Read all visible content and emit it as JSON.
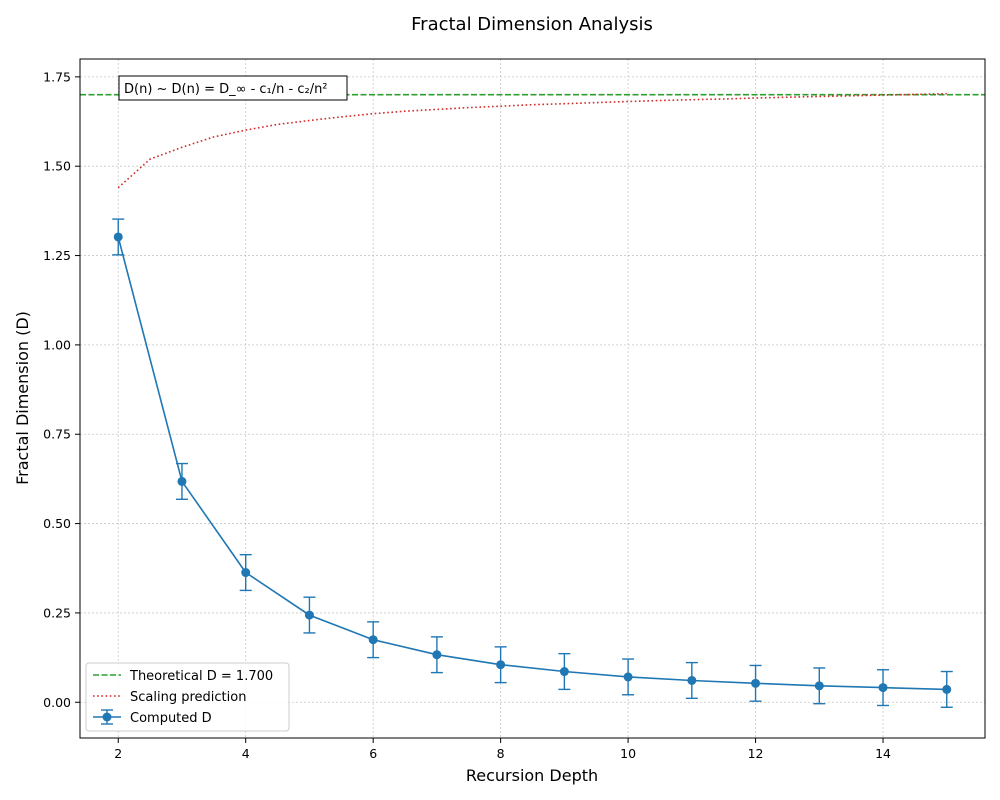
{
  "chart_data": {
    "type": "line",
    "title": "Fractal Dimension Analysis",
    "xlabel": "Recursion Depth",
    "ylabel": "Fractal Dimension (D)",
    "xlim": [
      1.4,
      15.6
    ],
    "ylim": [
      -0.1,
      1.8
    ],
    "xticks": [
      2,
      4,
      6,
      8,
      10,
      12,
      14
    ],
    "yticks": [
      0.0,
      0.25,
      0.5,
      0.75,
      1.0,
      1.25,
      1.5,
      1.75
    ],
    "ytick_labels": [
      "0.00",
      "0.25",
      "0.50",
      "0.75",
      "1.00",
      "1.25",
      "1.50",
      "1.75"
    ],
    "xtick_labels": [
      "2",
      "4",
      "6",
      "8",
      "10",
      "12",
      "14"
    ],
    "grid": true,
    "legend_position": "lower-left",
    "annotation": "D(n) ~ D(n) = D_∞ - c₁/n - c₂/n²",
    "series": [
      {
        "name": "Theoretical D = 1.700",
        "kind": "hline",
        "y": 1.7,
        "color": "#2ca02c",
        "style": "dashed"
      },
      {
        "name": "Scaling prediction",
        "kind": "curve",
        "x": [
          2,
          2.5,
          3,
          3.5,
          4,
          4.5,
          5,
          5.5,
          6,
          6.5,
          7,
          7.5,
          8,
          8.5,
          9,
          9.5,
          10,
          10.5,
          11,
          11.5,
          12,
          12.5,
          13,
          13.5,
          14,
          14.5,
          15
        ],
        "y": [
          1.44,
          1.52,
          1.553,
          1.582,
          1.601,
          1.617,
          1.628,
          1.638,
          1.647,
          1.654,
          1.659,
          1.664,
          1.668,
          1.672,
          1.675,
          1.678,
          1.681,
          1.684,
          1.686,
          1.688,
          1.691,
          1.693,
          1.695,
          1.697,
          1.699,
          1.701,
          1.703
        ],
        "color": "#d62728",
        "style": "dotted"
      },
      {
        "name": "Computed D",
        "kind": "errorbar",
        "x": [
          2,
          3,
          4,
          5,
          6,
          7,
          8,
          9,
          10,
          11,
          12,
          13,
          14,
          15
        ],
        "y": [
          1.302,
          0.618,
          0.363,
          0.244,
          0.175,
          0.133,
          0.105,
          0.086,
          0.071,
          0.061,
          0.053,
          0.046,
          0.041,
          0.036
        ],
        "err": [
          0.05,
          0.05,
          0.05,
          0.05,
          0.05,
          0.05,
          0.05,
          0.05,
          0.05,
          0.05,
          0.05,
          0.05,
          0.05,
          0.05
        ],
        "color": "#1f77b4",
        "style": "solid"
      }
    ]
  }
}
